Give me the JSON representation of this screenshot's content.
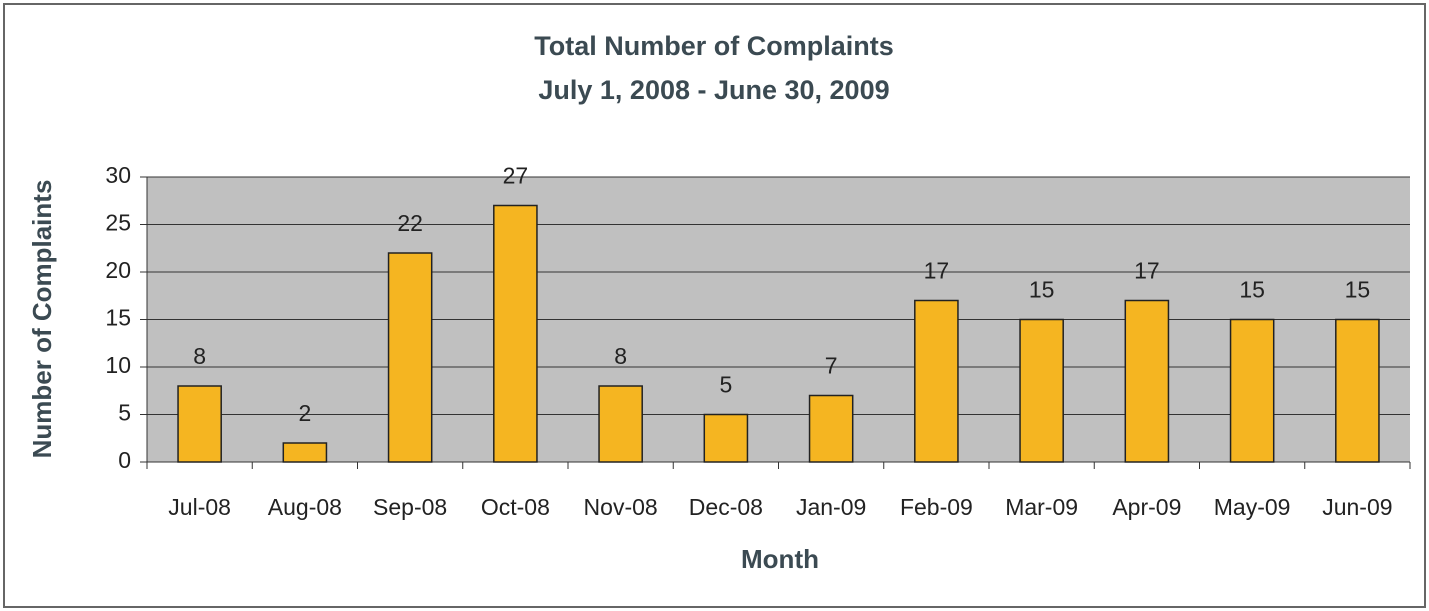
{
  "chart_data": {
    "type": "bar",
    "title": "Total Number of Complaints",
    "subtitle": "July 1, 2008 - June 30, 2009",
    "x_label": "Month",
    "y_label": "Number of Complaints",
    "categories": [
      "Jul-08",
      "Aug-08",
      "Sep-08",
      "Oct-08",
      "Nov-08",
      "Dec-08",
      "Jan-09",
      "Feb-09",
      "Mar-09",
      "Apr-09",
      "May-09",
      "Jun-09"
    ],
    "values": [
      8,
      2,
      22,
      27,
      8,
      5,
      7,
      17,
      15,
      17,
      15,
      15
    ],
    "color": "#f5b521",
    "ylim": [
      0,
      30
    ],
    "yticks": [
      0,
      5,
      10,
      15,
      20,
      25,
      30
    ],
    "grid": true
  }
}
